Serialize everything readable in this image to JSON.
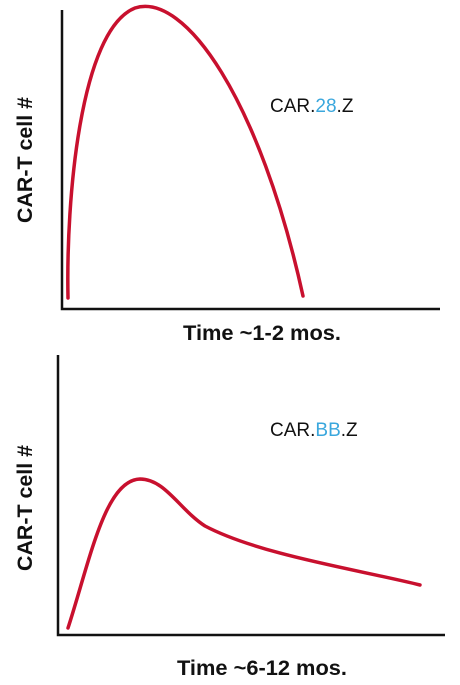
{
  "panels": [
    {
      "y_label": "CAR-T cell #",
      "x_label": "Time ~1-2 mos.",
      "curve_label": {
        "prefix": "CAR.",
        "highlight": "28",
        "suffix": ".Z"
      }
    },
    {
      "y_label": "CAR-T cell #",
      "x_label": "Time ~6-12 mos.",
      "curve_label": {
        "prefix": "CAR.",
        "highlight": "BB",
        "suffix": ".Z"
      }
    }
  ]
}
